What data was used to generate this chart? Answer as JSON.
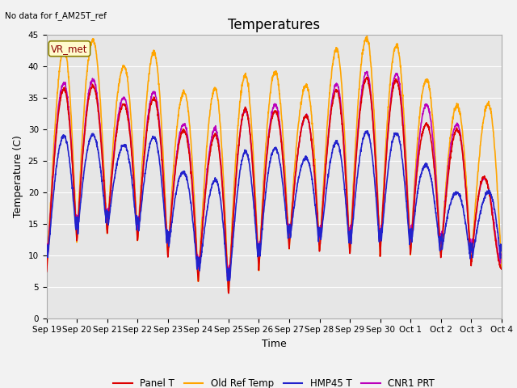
{
  "title": "Temperatures",
  "ylabel": "Temperature (C)",
  "xlabel": "Time",
  "annotation_text": "No data for f_AM25T_ref",
  "legend_label_text": "VR_met",
  "ylim": [
    0,
    45
  ],
  "series_colors": {
    "Panel T": "#dd0000",
    "Old Ref Temp": "#ffa500",
    "HMP45 T": "#2222cc",
    "CNR1 PRT": "#bb00bb"
  },
  "xtick_labels": [
    "Sep 19",
    "Sep 20",
    "Sep 21",
    "Sep 22",
    "Sep 23",
    "Sep 24",
    "Sep 25",
    "Sep 26",
    "Sep 27",
    "Sep 28",
    "Sep 29",
    "Sep 30",
    "Oct 1",
    "Oct 2",
    "Oct 3",
    "Oct 4"
  ],
  "ytick_vals": [
    0,
    5,
    10,
    15,
    20,
    25,
    30,
    35,
    40,
    45
  ],
  "bg_color": "#e6e6e6",
  "fig_color": "#f2f2f2",
  "title_fontsize": 12,
  "axis_label_fontsize": 9,
  "tick_fontsize": 7.5,
  "legend_fontsize": 8.5,
  "lw": 1.2
}
